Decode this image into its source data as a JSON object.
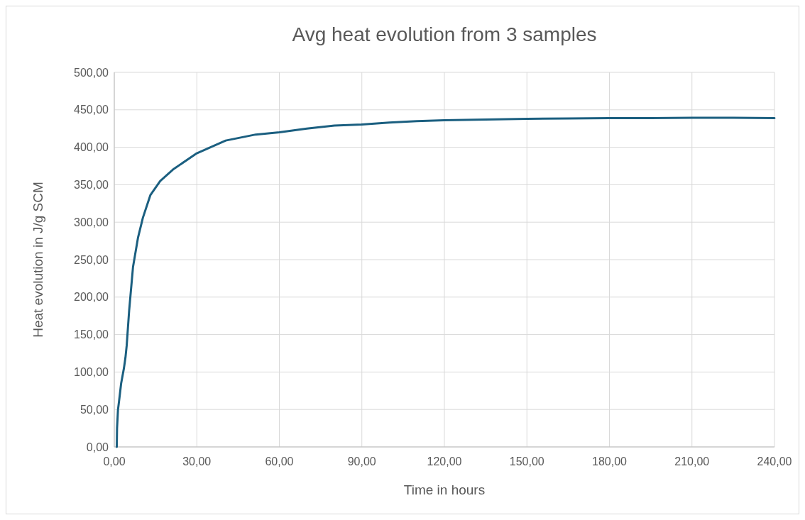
{
  "chart_data": {
    "type": "line",
    "title": "Avg heat evolution from 3 samples",
    "xlabel": "Time in  hours",
    "ylabel": "Heat evolution in J/g SCM",
    "x": [
      0.9,
      1.0,
      1.35,
      1.6,
      2.5,
      3.5,
      4.05,
      4.5,
      5.4,
      6.8,
      8.6,
      10.4,
      13.1,
      16.7,
      21.6,
      30,
      40.5,
      51.4,
      60,
      70,
      80,
      90,
      100,
      110,
      120,
      135,
      150,
      165,
      180,
      195,
      210,
      225,
      240
    ],
    "series": [
      {
        "color": "#1b5f80",
        "values": [
          0,
          25,
          50,
          57,
          85,
          105,
          119,
          135,
          182,
          240,
          279,
          306,
          336,
          355,
          371,
          392,
          409,
          417,
          420,
          425,
          429,
          430.5,
          433,
          435,
          436,
          437,
          438,
          438.5,
          439,
          439,
          439.5,
          439.5,
          439
        ]
      }
    ],
    "xlim": [
      0,
      240
    ],
    "xticks": [
      {
        "value": 0,
        "label": "0,00"
      },
      {
        "value": 30,
        "label": "30,00"
      },
      {
        "value": 60,
        "label": "60,00"
      },
      {
        "value": 90,
        "label": "90,00"
      },
      {
        "value": 120,
        "label": "120,00"
      },
      {
        "value": 150,
        "label": "150,00"
      },
      {
        "value": 180,
        "label": "180,00"
      },
      {
        "value": 210,
        "label": "210,00"
      },
      {
        "value": 240,
        "label": "240,00"
      }
    ],
    "ylim": [
      0,
      500
    ],
    "yticks": [
      {
        "value": 0,
        "label": "0,00"
      },
      {
        "value": 50,
        "label": "50,00"
      },
      {
        "value": 100,
        "label": "100,00"
      },
      {
        "value": 150,
        "label": "150,00"
      },
      {
        "value": 200,
        "label": "200,00"
      },
      {
        "value": 250,
        "label": "250,00"
      },
      {
        "value": 300,
        "label": "300,00"
      },
      {
        "value": 350,
        "label": "350,00"
      },
      {
        "value": 400,
        "label": "400,00"
      },
      {
        "value": 450,
        "label": "450,00"
      },
      {
        "value": 500,
        "label": "500,00"
      }
    ],
    "grid": true,
    "marker": "none",
    "line_style": "solid"
  }
}
